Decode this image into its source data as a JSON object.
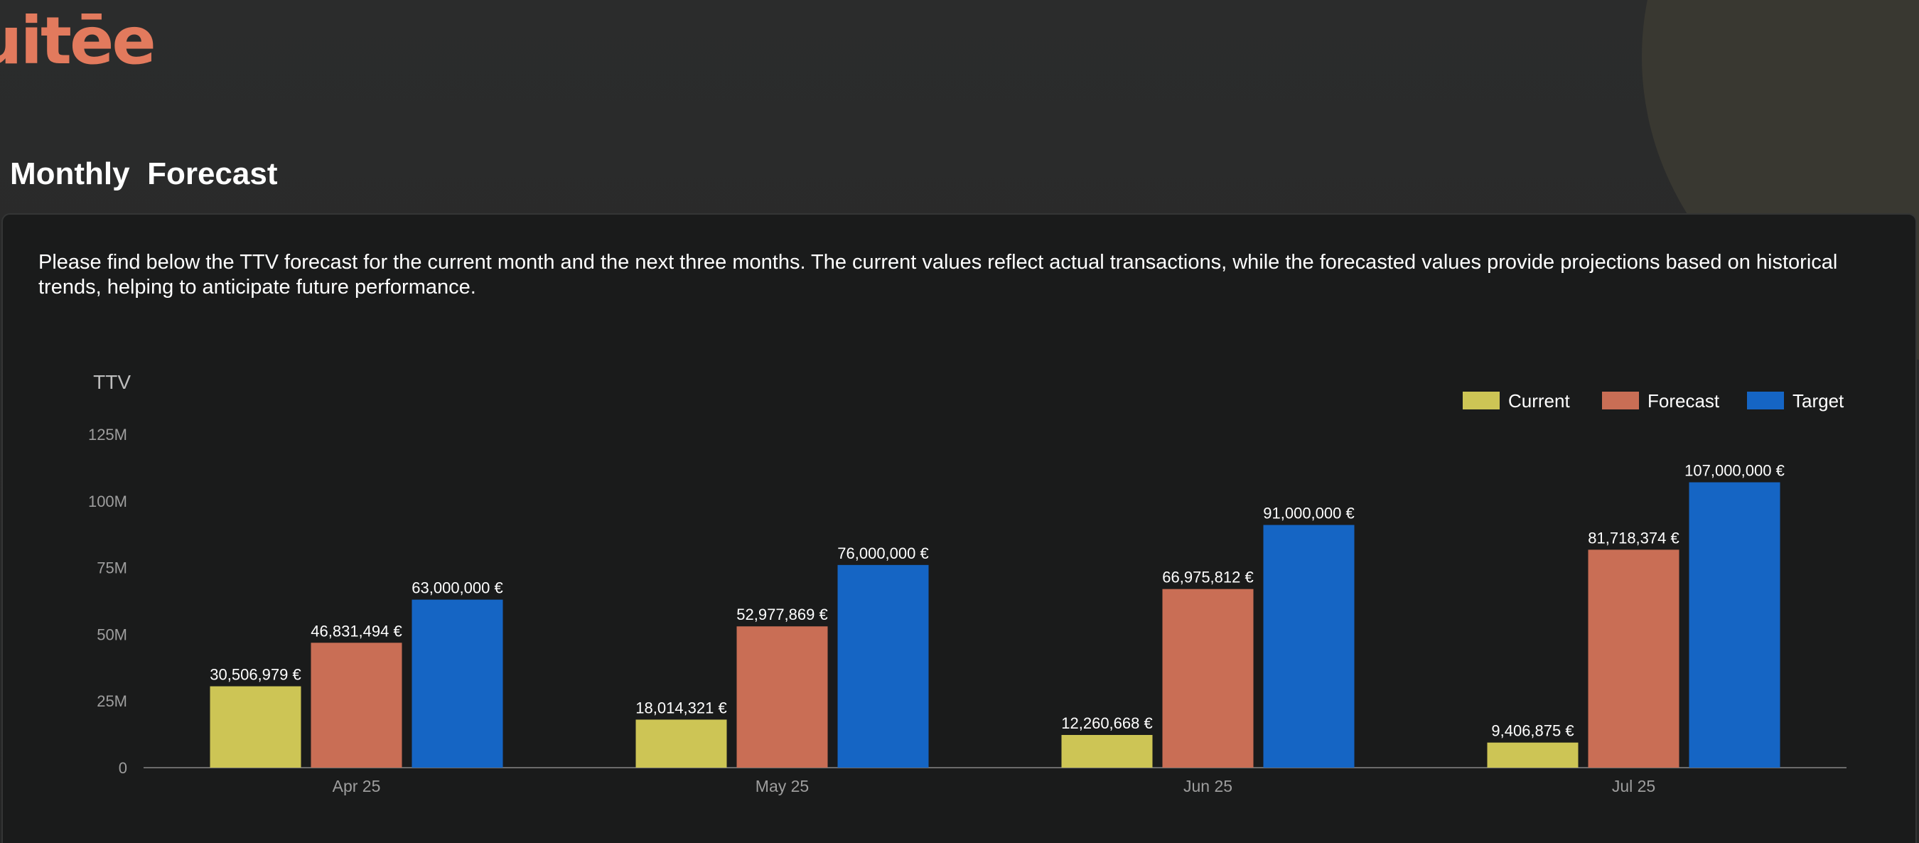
{
  "header": {
    "logo_text": "uitēe",
    "page_title": "Monthly  Forecast"
  },
  "panel": {
    "description": "Please find below the TTV forecast for the current month and the next three months. The current values reflect actual transactions, while the forecasted values provide projections based on historical trends, helping to anticipate future performance."
  },
  "colors": {
    "current": "#cdc555",
    "forecast": "#c96e55",
    "target": "#1565c4",
    "logo": "#e27a5d"
  },
  "chart_data": {
    "type": "bar",
    "ylabel": "TTV",
    "ylim": [
      0,
      125000000
    ],
    "yticks": [
      {
        "value": 0,
        "label": "0"
      },
      {
        "value": 25000000,
        "label": "25M"
      },
      {
        "value": 50000000,
        "label": "50M"
      },
      {
        "value": 75000000,
        "label": "75M"
      },
      {
        "value": 100000000,
        "label": "100M"
      },
      {
        "value": 125000000,
        "label": "125M"
      }
    ],
    "categories": [
      "Apr 25",
      "May 25",
      "Jun 25",
      "Jul 25"
    ],
    "legend_position": "top-right",
    "grid": false,
    "series": [
      {
        "name": "Current",
        "color": "#cdc555",
        "values": [
          30506979,
          18014321,
          12260668,
          9406875
        ],
        "labels": [
          "30,506,979 €",
          "18,014,321 €",
          "12,260,668 €",
          "9,406,875 €"
        ]
      },
      {
        "name": "Forecast",
        "color": "#c96e55",
        "values": [
          46831494,
          52977869,
          66975812,
          81718374
        ],
        "labels": [
          "46,831,494 €",
          "52,977,869 €",
          "66,975,812 €",
          "81,718,374 €"
        ]
      },
      {
        "name": "Target",
        "color": "#1565c4",
        "values": [
          63000000,
          76000000,
          91000000,
          107000000
        ],
        "labels": [
          "63,000,000 €",
          "76,000,000 €",
          "91,000,000 €",
          "107,000,000 €"
        ]
      }
    ]
  }
}
